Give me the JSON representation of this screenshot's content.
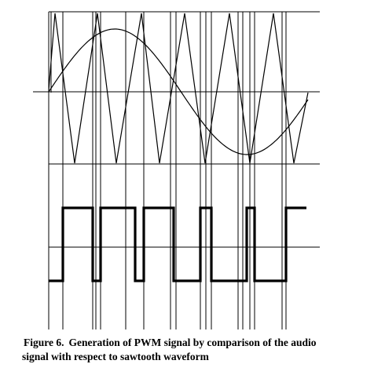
{
  "caption": {
    "label": "Figure 6.",
    "line1": "Generation of PWM signal by comparison of the audio",
    "line2": "signal with respect to sawtooth waveform"
  },
  "signals": {
    "sawtooth_peaks": 6,
    "audio_cycles": 1,
    "pwm_transitions": 12
  },
  "colors": {
    "ink": "#000000",
    "background": "#ffffff"
  }
}
